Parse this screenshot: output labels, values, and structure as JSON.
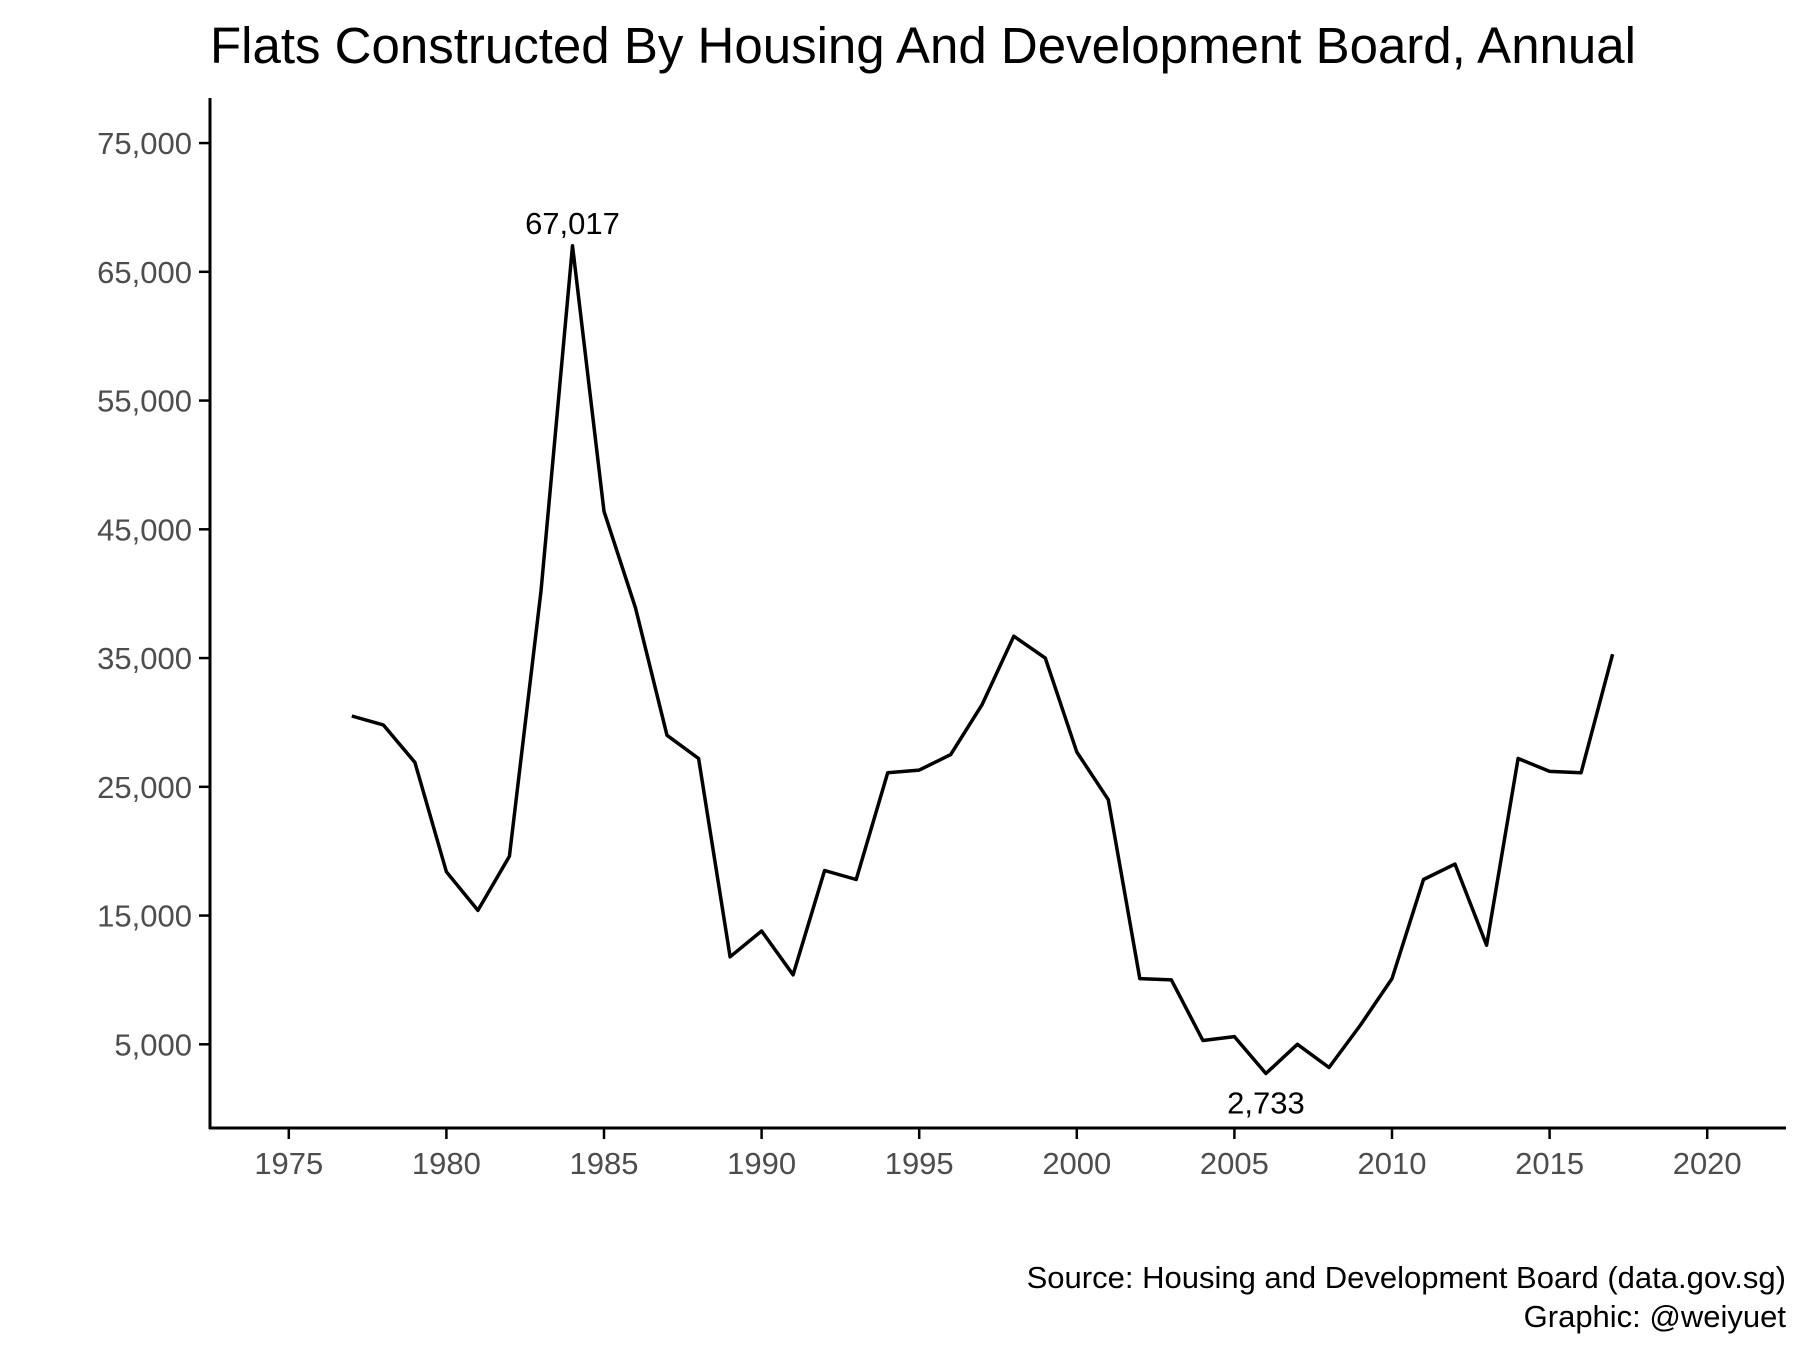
{
  "chart_data": {
    "type": "line",
    "title": "Flats Constructed By Housing And Development Board, Annual",
    "xlabel": "",
    "ylabel": "",
    "xlim": [
      1972.5,
      2022.5
    ],
    "ylim": [
      -1500,
      78500
    ],
    "grid": false,
    "legend": "none",
    "x_ticks": [
      1975,
      1980,
      1985,
      1990,
      1995,
      2000,
      2005,
      2010,
      2015,
      2020
    ],
    "x_tick_labels": [
      "1975",
      "1980",
      "1985",
      "1990",
      "1995",
      "2000",
      "2005",
      "2010",
      "2015",
      "2020"
    ],
    "y_ticks": [
      5000,
      15000,
      25000,
      35000,
      45000,
      55000,
      65000,
      75000
    ],
    "y_tick_labels": [
      "5,000",
      "15,000",
      "25,000",
      "35,000",
      "45,000",
      "55,000",
      "65,000",
      "75,000"
    ],
    "line_color": "#000000",
    "series": [
      {
        "x": [
          1977,
          1978,
          1979,
          1980,
          1981,
          1982,
          1983,
          1984,
          1985,
          1986,
          1987,
          1988,
          1989,
          1990,
          1991,
          1992,
          1993,
          1994,
          1995,
          1996,
          1997,
          1998,
          1999,
          2000,
          2001,
          2002,
          2003,
          2004,
          2005,
          2006,
          2007,
          2008,
          2009,
          2010,
          2011,
          2012,
          2013,
          2014,
          2015,
          2016,
          2017
        ],
        "values": [
          30500,
          29800,
          26900,
          18400,
          15400,
          19600,
          40200,
          67017,
          46400,
          38900,
          29000,
          27200,
          11800,
          13800,
          10400,
          18500,
          17800,
          26100,
          26300,
          27500,
          31400,
          36700,
          35000,
          27700,
          24000,
          10100,
          10000,
          5300,
          5600,
          2733,
          5000,
          3200,
          6500,
          10100,
          17800,
          19000,
          12700,
          27200,
          26200,
          26100,
          35300
        ]
      }
    ],
    "annotations": [
      {
        "text": "67,017",
        "x": 1984,
        "y": 67017,
        "position": "above"
      },
      {
        "text": "2,733",
        "x": 2006,
        "y": 2733,
        "position": "below"
      }
    ]
  },
  "footer": {
    "source": "Source: Housing and Development Board (data.gov.sg)",
    "graphic": "Graphic: @weiyuet"
  }
}
